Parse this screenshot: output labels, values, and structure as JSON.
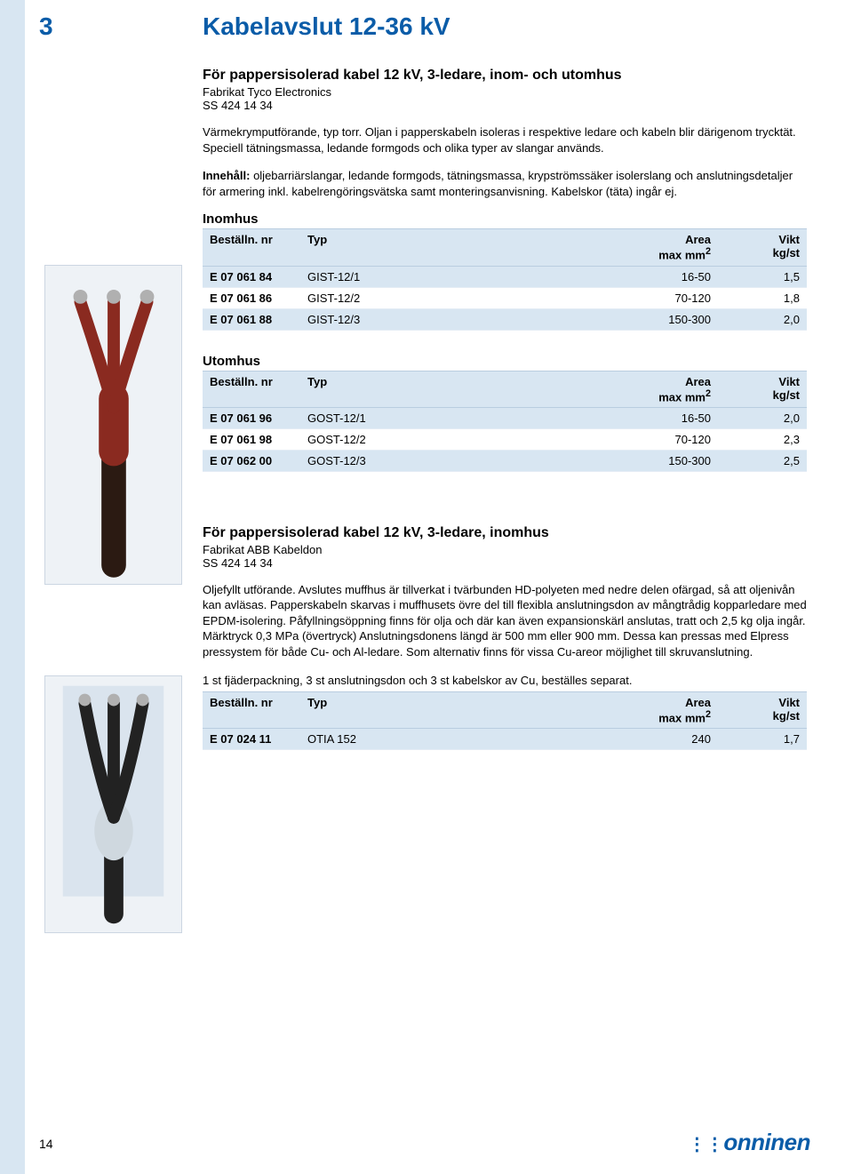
{
  "page_number_top": "3",
  "chapter_title": "Kabelavslut 12-36 kV",
  "section1": {
    "title": "För pappersisolerad kabel 12 kV, 3-ledare, inom- och utomhus",
    "brand": "Fabrikat Tyco Electronics",
    "standard": "SS 424 14 34",
    "para1": "Värmekrymputförande, typ torr. Oljan i papperskabeln isoleras i respektive ledare och kabeln blir därigenom trycktät. Speciell tätningsmassa, ledande formgods och olika typer av slangar används.",
    "para2_label": "Innehåll:",
    "para2_text": " oljebarriärslangar, ledande formgods, tätningsmassa, krypströmssäker isolerslang och anslutningsdetaljer för armering inkl. kabelrengöringsvätska samt monteringsanvisning. Kabelskor (täta) ingår ej.",
    "inomhus_label": "Inomhus",
    "utomhus_label": "Utomhus"
  },
  "columns": {
    "nr": "Beställn. nr",
    "typ": "Typ",
    "area_l1": "Area",
    "area_l2": "max mm",
    "area_sup": "2",
    "vikt_l1": "Vikt",
    "vikt_l2": "kg/st"
  },
  "table_inomhus": {
    "rows": [
      {
        "nr": "E 07 061 84",
        "typ": "GIST-12/1",
        "area": "16-50",
        "vikt": "1,5"
      },
      {
        "nr": "E 07 061 86",
        "typ": "GIST-12/2",
        "area": "70-120",
        "vikt": "1,8"
      },
      {
        "nr": "E 07 061 88",
        "typ": "GIST-12/3",
        "area": "150-300",
        "vikt": "2,0"
      }
    ],
    "row_bg": [
      "even",
      "odd",
      "even"
    ]
  },
  "table_utomhus": {
    "rows": [
      {
        "nr": "E 07 061 96",
        "typ": "GOST-12/1",
        "area": "16-50",
        "vikt": "2,0"
      },
      {
        "nr": "E 07 061 98",
        "typ": "GOST-12/2",
        "area": "70-120",
        "vikt": "2,3"
      },
      {
        "nr": "E 07 062 00",
        "typ": "GOST-12/3",
        "area": "150-300",
        "vikt": "2,5"
      }
    ],
    "row_bg": [
      "even",
      "odd",
      "even"
    ]
  },
  "section2": {
    "title": "För pappersisolerad kabel 12 kV, 3-ledare, inomhus",
    "brand": "Fabrikat ABB Kabeldon",
    "standard": "SS 424 14 34",
    "para1": "Oljefyllt utförande. Avslutes muffhus är tillverkat i tvärbunden HD-polyeten med nedre delen ofärgad, så att oljenivån kan avläsas. Papperskabeln skarvas i muffhusets övre del till flexibla anslutningsdon av mångtrådig kopparledare med EPDM-isolering. Påfyllningsöppning finns för olja och där kan även expansionskärl anslutas, tratt och 2,5 kg olja ingår. Märktryck 0,3 MPa (övertryck) Anslutningsdonens längd är 500 mm eller 900 mm. Dessa kan pressas med Elpress pressystem för både Cu- och Al-ledare. Som alternativ finns för vissa Cu-areor möjlighet till skruvanslutning.",
    "para2": "1 st fjäderpackning, 3 st anslutningsdon och 3 st kabelskor av Cu, beställes separat."
  },
  "table3": {
    "rows": [
      {
        "nr": "E 07 024 11",
        "typ": "OTIA 152",
        "area": "240",
        "vikt": "1,7"
      }
    ],
    "row_bg": [
      "even"
    ]
  },
  "footer_page": "14",
  "footer_logo": "onninen",
  "colors": {
    "accent": "#0a5ca8",
    "band": "#d8e6f2"
  }
}
